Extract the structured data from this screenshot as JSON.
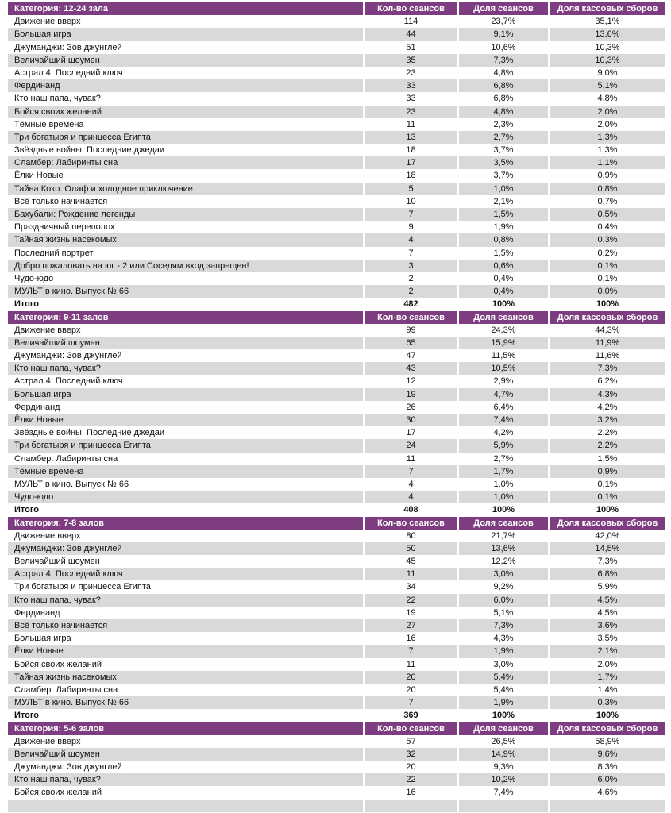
{
  "chart_data": {
    "type": "table",
    "columns": [
      "Кол-во сеансов",
      "Доля сеансов",
      "Доля кассовых сборов"
    ],
    "total_label": "Итого",
    "sections": [
      {
        "category": "Категория: 12-24 зала",
        "rows": [
          {
            "title": "Движение вверх",
            "sessions": "114",
            "share_sessions": "23,7%",
            "share_box": "35,1%"
          },
          {
            "title": "Большая игра",
            "sessions": "44",
            "share_sessions": "9,1%",
            "share_box": "13,6%"
          },
          {
            "title": "Джуманджи: Зов джунглей",
            "sessions": "51",
            "share_sessions": "10,6%",
            "share_box": "10,3%"
          },
          {
            "title": "Величайший шоумен",
            "sessions": "35",
            "share_sessions": "7,3%",
            "share_box": "10,3%"
          },
          {
            "title": "Астрал 4: Последний ключ",
            "sessions": "23",
            "share_sessions": "4,8%",
            "share_box": "9,0%"
          },
          {
            "title": "Фердинанд",
            "sessions": "33",
            "share_sessions": "6,8%",
            "share_box": "5,1%"
          },
          {
            "title": "Кто наш папа, чувак?",
            "sessions": "33",
            "share_sessions": "6,8%",
            "share_box": "4,8%"
          },
          {
            "title": "Бойся своих желаний",
            "sessions": "23",
            "share_sessions": "4,8%",
            "share_box": "2,0%"
          },
          {
            "title": "Тёмные времена",
            "sessions": "11",
            "share_sessions": "2,3%",
            "share_box": "2,0%"
          },
          {
            "title": "Три богатыря и принцесса Египта",
            "sessions": "13",
            "share_sessions": "2,7%",
            "share_box": "1,3%"
          },
          {
            "title": "Звёздные войны: Последние джедаи",
            "sessions": "18",
            "share_sessions": "3,7%",
            "share_box": "1,3%"
          },
          {
            "title": "Сламбер: Лабиринты сна",
            "sessions": "17",
            "share_sessions": "3,5%",
            "share_box": "1,1%"
          },
          {
            "title": "Ёлки Новые",
            "sessions": "18",
            "share_sessions": "3,7%",
            "share_box": "0,9%"
          },
          {
            "title": "Тайна Коко. Олаф и холодное приключение",
            "sessions": "5",
            "share_sessions": "1,0%",
            "share_box": "0,8%"
          },
          {
            "title": "Всё только начинается",
            "sessions": "10",
            "share_sessions": "2,1%",
            "share_box": "0,7%"
          },
          {
            "title": "Бахубали: Рождение легенды",
            "sessions": "7",
            "share_sessions": "1,5%",
            "share_box": "0,5%"
          },
          {
            "title": "Праздничный переполох",
            "sessions": "9",
            "share_sessions": "1,9%",
            "share_box": "0,4%"
          },
          {
            "title": "Тайная жизнь насекомых",
            "sessions": "4",
            "share_sessions": "0,8%",
            "share_box": "0,3%"
          },
          {
            "title": "Последний портрет",
            "sessions": "7",
            "share_sessions": "1,5%",
            "share_box": "0,2%"
          },
          {
            "title": "Добро пожаловать на юг - 2 или Соседям вход запрещен!",
            "sessions": "3",
            "share_sessions": "0,6%",
            "share_box": "0,1%"
          },
          {
            "title": "Чудо-юдо",
            "sessions": "2",
            "share_sessions": "0,4%",
            "share_box": "0,1%"
          },
          {
            "title": "МУЛЬТ в кино. Выпуск № 66",
            "sessions": "2",
            "share_sessions": "0,4%",
            "share_box": "0,0%"
          }
        ],
        "total": {
          "sessions": "482",
          "share_sessions": "100%",
          "share_box": "100%"
        }
      },
      {
        "category": "Категория: 9-11 залов",
        "rows": [
          {
            "title": "Движение вверх",
            "sessions": "99",
            "share_sessions": "24,3%",
            "share_box": "44,3%"
          },
          {
            "title": "Величайший шоумен",
            "sessions": "65",
            "share_sessions": "15,9%",
            "share_box": "11,9%"
          },
          {
            "title": "Джуманджи: Зов джунглей",
            "sessions": "47",
            "share_sessions": "11,5%",
            "share_box": "11,6%"
          },
          {
            "title": "Кто наш папа, чувак?",
            "sessions": "43",
            "share_sessions": "10,5%",
            "share_box": "7,3%"
          },
          {
            "title": "Астрал 4: Последний ключ",
            "sessions": "12",
            "share_sessions": "2,9%",
            "share_box": "6,2%"
          },
          {
            "title": "Большая игра",
            "sessions": "19",
            "share_sessions": "4,7%",
            "share_box": "4,3%"
          },
          {
            "title": "Фердинанд",
            "sessions": "26",
            "share_sessions": "6,4%",
            "share_box": "4,2%"
          },
          {
            "title": "Ёлки Новые",
            "sessions": "30",
            "share_sessions": "7,4%",
            "share_box": "3,2%"
          },
          {
            "title": "Звёздные войны: Последние джедаи",
            "sessions": "17",
            "share_sessions": "4,2%",
            "share_box": "2,2%"
          },
          {
            "title": "Три богатыря и принцесса Египта",
            "sessions": "24",
            "share_sessions": "5,9%",
            "share_box": "2,2%"
          },
          {
            "title": "Сламбер: Лабиринты сна",
            "sessions": "11",
            "share_sessions": "2,7%",
            "share_box": "1,5%"
          },
          {
            "title": "Тёмные времена",
            "sessions": "7",
            "share_sessions": "1,7%",
            "share_box": "0,9%"
          },
          {
            "title": "МУЛЬТ в кино. Выпуск № 66",
            "sessions": "4",
            "share_sessions": "1,0%",
            "share_box": "0,1%"
          },
          {
            "title": "Чудо-юдо",
            "sessions": "4",
            "share_sessions": "1,0%",
            "share_box": "0,1%"
          }
        ],
        "total": {
          "sessions": "408",
          "share_sessions": "100%",
          "share_box": "100%"
        }
      },
      {
        "category": "Категория: 7-8 залов",
        "rows": [
          {
            "title": "Движение вверх",
            "sessions": "80",
            "share_sessions": "21,7%",
            "share_box": "42,0%"
          },
          {
            "title": "Джуманджи: Зов джунглей",
            "sessions": "50",
            "share_sessions": "13,6%",
            "share_box": "14,5%"
          },
          {
            "title": "Величайший шоумен",
            "sessions": "45",
            "share_sessions": "12,2%",
            "share_box": "7,3%"
          },
          {
            "title": "Астрал 4: Последний ключ",
            "sessions": "11",
            "share_sessions": "3,0%",
            "share_box": "6,8%"
          },
          {
            "title": "Три богатыря и принцесса Египта",
            "sessions": "34",
            "share_sessions": "9,2%",
            "share_box": "5,9%"
          },
          {
            "title": "Кто наш папа, чувак?",
            "sessions": "22",
            "share_sessions": "6,0%",
            "share_box": "4,5%"
          },
          {
            "title": "Фердинанд",
            "sessions": "19",
            "share_sessions": "5,1%",
            "share_box": "4,5%"
          },
          {
            "title": "Всё только начинается",
            "sessions": "27",
            "share_sessions": "7,3%",
            "share_box": "3,6%"
          },
          {
            "title": "Большая игра",
            "sessions": "16",
            "share_sessions": "4,3%",
            "share_box": "3,5%"
          },
          {
            "title": "Ёлки Новые",
            "sessions": "7",
            "share_sessions": "1,9%",
            "share_box": "2,1%"
          },
          {
            "title": "Бойся своих желаний",
            "sessions": "11",
            "share_sessions": "3,0%",
            "share_box": "2,0%"
          },
          {
            "title": "Тайная жизнь насекомых",
            "sessions": "20",
            "share_sessions": "5,4%",
            "share_box": "1,7%"
          },
          {
            "title": "Сламбер: Лабиринты сна",
            "sessions": "20",
            "share_sessions": "5,4%",
            "share_box": "1,4%"
          },
          {
            "title": "МУЛЬТ в кино. Выпуск № 66",
            "sessions": "7",
            "share_sessions": "1,9%",
            "share_box": "0,3%"
          }
        ],
        "total": {
          "sessions": "369",
          "share_sessions": "100%",
          "share_box": "100%"
        }
      },
      {
        "category": "Категория: 5-6 залов",
        "rows": [
          {
            "title": "Движение вверх",
            "sessions": "57",
            "share_sessions": "26,5%",
            "share_box": "58,9%"
          },
          {
            "title": "Величайший шоумен",
            "sessions": "32",
            "share_sessions": "14,9%",
            "share_box": "9,6%"
          },
          {
            "title": "Джуманджи: Зов джунглей",
            "sessions": "20",
            "share_sessions": "9,3%",
            "share_box": "8,3%"
          },
          {
            "title": "Кто наш папа, чувак?",
            "sessions": "22",
            "share_sessions": "10,2%",
            "share_box": "6,0%"
          },
          {
            "title": "Бойся своих желаний",
            "sessions": "16",
            "share_sessions": "7,4%",
            "share_box": "4,6%"
          }
        ],
        "total": null
      }
    ],
    "colors": {
      "header_bg": "#7e3d80",
      "header_text": "#ffffff",
      "stripe_bg": "#d9d9d9",
      "body_text": "#111111"
    }
  }
}
